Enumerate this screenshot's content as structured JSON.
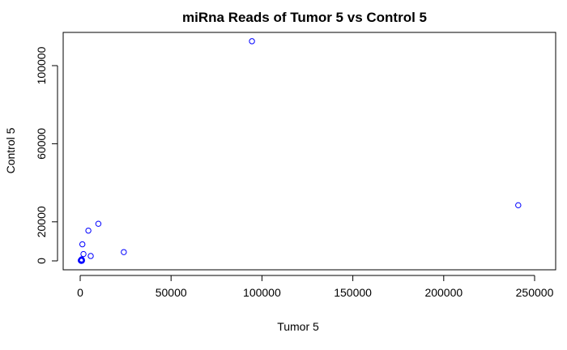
{
  "chart_data": {
    "type": "scatter",
    "title": "miRna Reads of Tumor 5 vs Control 5",
    "xlabel": "Tumor 5",
    "ylabel": "Control 5",
    "xlim": [
      0,
      250000
    ],
    "ylim": [
      0,
      110000
    ],
    "x_ticks": [
      0,
      50000,
      100000,
      150000,
      200000,
      250000
    ],
    "x_tick_labels": [
      "0",
      "50000",
      "100000",
      "150000",
      "200000",
      "250000"
    ],
    "y_ticks": [
      0,
      20000,
      60000,
      100000
    ],
    "y_tick_labels": [
      "0",
      "20000",
      "60000",
      "100000"
    ],
    "grid": false,
    "legend": "none",
    "marker": "open-circle",
    "marker_color": "#0000ff",
    "x": [
      94500,
      241000,
      10000,
      4500,
      24000,
      1200,
      1800,
      5800,
      900,
      600,
      500,
      800,
      1000,
      300,
      700
    ],
    "y": [
      112500,
      28500,
      19000,
      15500,
      4500,
      8500,
      3500,
      2500,
      500,
      0,
      300,
      800,
      100,
      200,
      600
    ]
  }
}
